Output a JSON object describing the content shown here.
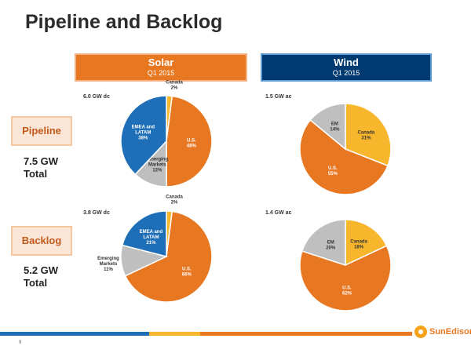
{
  "title": "Pipeline and Backlog",
  "headers": {
    "solar": {
      "main": "Solar",
      "sub": "Q1 2015"
    },
    "wind": {
      "main": "Wind",
      "sub": "Q1 2015"
    }
  },
  "rows": {
    "pipeline": {
      "label": "Pipeline",
      "total_line1": "7.5 GW",
      "total_line2": "Total"
    },
    "backlog": {
      "label": "Backlog",
      "total_line1": "5.2 GW",
      "total_line2": "Total"
    }
  },
  "captions": {
    "solar_pipeline": "6.0 GW dc",
    "wind_pipeline": "1.5 GW ac",
    "solar_backlog": "3.8 GW dc",
    "wind_backlog": "1.4 GW ac"
  },
  "colors": {
    "orange": "#e87722",
    "blue": "#1f6fb8",
    "gray": "#bfbfbf",
    "yellow": "#f8b62d"
  },
  "page_number": "9",
  "logo_text": "SunEdison",
  "chart_data": [
    {
      "type": "pie",
      "name": "solar-pipeline",
      "slices": [
        {
          "label": "Canada 2%",
          "value": 2,
          "color": "#f8b62d"
        },
        {
          "label": "U.S. 48%",
          "value": 48,
          "color": "#e87722"
        },
        {
          "label": "Emerging Markets 12%",
          "value": 12,
          "color": "#bfbfbf"
        },
        {
          "label": "EMEA and LATAM 38%",
          "value": 38,
          "color": "#1f6fb8"
        }
      ]
    },
    {
      "type": "pie",
      "name": "wind-pipeline",
      "slices": [
        {
          "label": "Canada 31%",
          "value": 31,
          "color": "#f8b62d"
        },
        {
          "label": "U.S. 55%",
          "value": 55,
          "color": "#e87722"
        },
        {
          "label": "EM 14%",
          "value": 14,
          "color": "#bfbfbf"
        }
      ]
    },
    {
      "type": "pie",
      "name": "solar-backlog",
      "slices": [
        {
          "label": "Canada 2%",
          "value": 2,
          "color": "#f8b62d"
        },
        {
          "label": "U.S. 66%",
          "value": 66,
          "color": "#e87722"
        },
        {
          "label": "Emerging Markets 11%",
          "value": 11,
          "color": "#bfbfbf"
        },
        {
          "label": "EMEA and LATAM 21%",
          "value": 21,
          "color": "#1f6fb8"
        }
      ]
    },
    {
      "type": "pie",
      "name": "wind-backlog",
      "slices": [
        {
          "label": "Canada 18%",
          "value": 18,
          "color": "#f8b62d"
        },
        {
          "label": "U.S. 62%",
          "value": 62,
          "color": "#e87722"
        },
        {
          "label": "EM 20%",
          "value": 20,
          "color": "#bfbfbf"
        }
      ]
    }
  ]
}
